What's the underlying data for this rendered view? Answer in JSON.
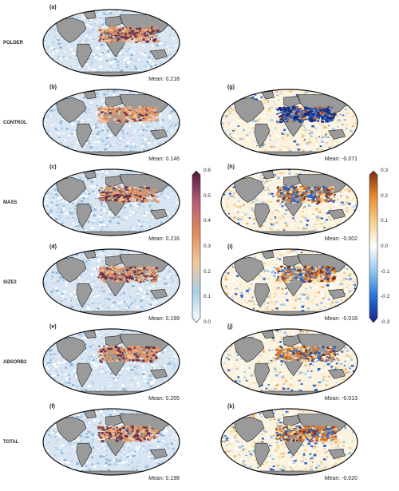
{
  "panels": [
    {
      "id": "a",
      "letter": "(a)",
      "row_label": "POLDER",
      "mean": "Mean: 0.218",
      "scale": "abs",
      "col": 0,
      "row": 0
    },
    {
      "id": "b",
      "letter": "(b)",
      "row_label": "CONTROL",
      "mean": "Mean: 0.146",
      "scale": "abs",
      "col": 0,
      "row": 1
    },
    {
      "id": "c",
      "letter": "(c)",
      "row_label": "MASS",
      "mean": "Mean: 0.216",
      "scale": "abs",
      "col": 0,
      "row": 2
    },
    {
      "id": "d",
      "letter": "(d)",
      "row_label": "SIZE2",
      "mean": "Mean: 0.199",
      "scale": "abs",
      "col": 0,
      "row": 3
    },
    {
      "id": "e",
      "letter": "(e)",
      "row_label": "ABSORB2",
      "mean": "Mean: 0.205",
      "scale": "abs",
      "col": 0,
      "row": 4
    },
    {
      "id": "f",
      "letter": "(f)",
      "row_label": "TOTAL",
      "mean": "Mean: 0.198",
      "scale": "abs",
      "col": 0,
      "row": 5
    },
    {
      "id": "g",
      "letter": "(g)",
      "row_label": "",
      "mean": "Mean: -0.071",
      "scale": "diff",
      "col": 1,
      "row": 1
    },
    {
      "id": "h",
      "letter": "(h)",
      "row_label": "",
      "mean": "Mean: -0.002",
      "scale": "diff",
      "col": 1,
      "row": 2
    },
    {
      "id": "i",
      "letter": "(i)",
      "row_label": "",
      "mean": "Mean: -0.018",
      "scale": "diff",
      "col": 1,
      "row": 3
    },
    {
      "id": "j",
      "letter": "(j)",
      "row_label": "",
      "mean": "Mean: -0.013",
      "scale": "diff",
      "col": 1,
      "row": 4
    },
    {
      "id": "k",
      "letter": "(k)",
      "row_label": "",
      "mean": "Mean: -0.020",
      "scale": "diff",
      "col": 1,
      "row": 5
    }
  ],
  "colorbar_abs": {
    "ticks": [
      "0.6",
      "0.5",
      "0.4",
      "0.3",
      "0.2",
      "0.1",
      "0.0"
    ],
    "colors": [
      "#ffffff",
      "#a9cfe8",
      "#f2c89a",
      "#e0885a",
      "#b75a7a",
      "#4a1a3a"
    ]
  },
  "colorbar_diff": {
    "ticks": [
      "0.3",
      "0.2",
      "0.1",
      "0.0",
      "-0.1",
      "-0.2",
      "-0.3"
    ],
    "colors": [
      "#1a237e",
      "#1e6fd9",
      "#8ec6ef",
      "#ffffff",
      "#f6d08a",
      "#e88a2a",
      "#7a2a0a"
    ]
  },
  "colors": {
    "land": "#9a9a9a",
    "ocean_low": "#d9e6f2",
    "ocean_mid": "#bcd6ec",
    "dust_orange": "#e39766",
    "dust_dark": "#6a3148",
    "diff_blue": "#2a62c8",
    "diff_navy": "#0d2a86",
    "diff_yellow": "#f5d79a",
    "diff_orange": "#e0762a"
  }
}
